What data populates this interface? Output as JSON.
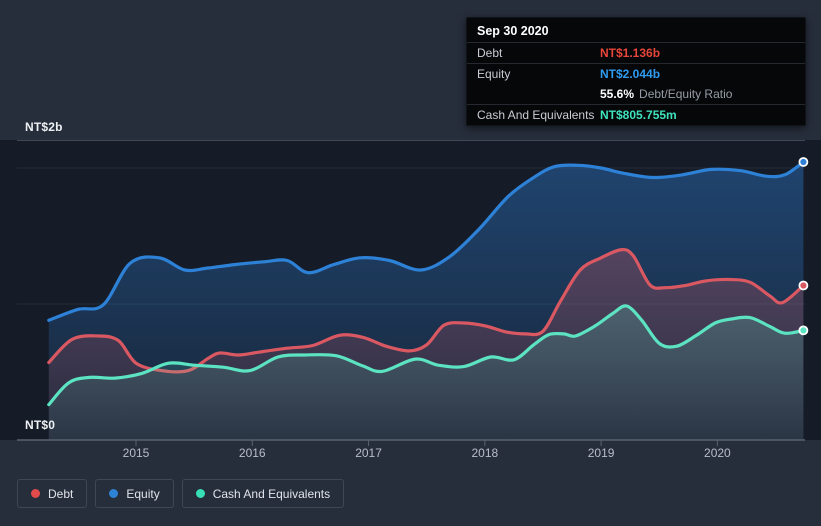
{
  "tooltip": {
    "date": "Sep 30 2020",
    "debt_label": "Debt",
    "debt_value": "NT$1.136b",
    "equity_label": "Equity",
    "equity_value": "NT$2.044b",
    "ratio_value": "55.6%",
    "ratio_label": "Debt/Equity Ratio",
    "cash_label": "Cash And Equivalents",
    "cash_value": "NT$805.755m"
  },
  "y_axis": {
    "top_label": "NT$2b",
    "bottom_label": "NT$0"
  },
  "legend": {
    "items": [
      {
        "label": "Debt",
        "color": "#e14b4b"
      },
      {
        "label": "Equity",
        "color": "#2e82d6"
      },
      {
        "label": "Cash And Equivalents",
        "color": "#38dfb6"
      }
    ]
  },
  "colors": {
    "debt_text": "#e8463a",
    "equity_text": "#2f9bf1",
    "cash_text": "#3fe2bd",
    "ratio_muted": "#969da6"
  },
  "chart_data": {
    "type": "area",
    "x_unit": "year",
    "x_ticks": [
      2015,
      2016,
      2017,
      2018,
      2019,
      2020
    ],
    "x_range": [
      2014.25,
      2020.74
    ],
    "ylim": [
      0,
      2.2
    ],
    "y_gridline_values": [
      1,
      2
    ],
    "value_unit": "NT$ billions",
    "legend_position": "bottom-left",
    "series": [
      {
        "name": "Equity",
        "color": "#2d82d8",
        "fill_top": "rgba(45,127,216,0.42)",
        "fill_bottom": "rgba(45,127,216,0.10)",
        "end_value": 2.044,
        "points": [
          [
            2014.25,
            0.88
          ],
          [
            2014.5,
            0.96
          ],
          [
            2014.72,
            0.995
          ],
          [
            2014.95,
            1.3
          ],
          [
            2015.2,
            1.34
          ],
          [
            2015.42,
            1.25
          ],
          [
            2015.62,
            1.265
          ],
          [
            2015.85,
            1.29
          ],
          [
            2016.1,
            1.31
          ],
          [
            2016.3,
            1.32
          ],
          [
            2016.48,
            1.23
          ],
          [
            2016.7,
            1.29
          ],
          [
            2016.93,
            1.34
          ],
          [
            2017.18,
            1.32
          ],
          [
            2017.45,
            1.25
          ],
          [
            2017.7,
            1.35
          ],
          [
            2017.95,
            1.55
          ],
          [
            2018.2,
            1.79
          ],
          [
            2018.42,
            1.93
          ],
          [
            2018.6,
            2.01
          ],
          [
            2018.8,
            2.02
          ],
          [
            2019.0,
            2.0
          ],
          [
            2019.2,
            1.96
          ],
          [
            2019.45,
            1.93
          ],
          [
            2019.7,
            1.95
          ],
          [
            2019.95,
            1.99
          ],
          [
            2020.2,
            1.98
          ],
          [
            2020.42,
            1.94
          ],
          [
            2020.58,
            1.95
          ],
          [
            2020.74,
            2.044
          ]
        ]
      },
      {
        "name": "Debt",
        "color": "#d95862",
        "fill_top": "rgba(219,88,96,0.40)",
        "fill_bottom": "rgba(219,88,96,0.08)",
        "end_value": 1.136,
        "points": [
          [
            2014.25,
            0.57
          ],
          [
            2014.45,
            0.74
          ],
          [
            2014.68,
            0.765
          ],
          [
            2014.85,
            0.73
          ],
          [
            2015.0,
            0.565
          ],
          [
            2015.22,
            0.51
          ],
          [
            2015.45,
            0.51
          ],
          [
            2015.62,
            0.6
          ],
          [
            2015.72,
            0.64
          ],
          [
            2015.88,
            0.625
          ],
          [
            2016.05,
            0.645
          ],
          [
            2016.3,
            0.675
          ],
          [
            2016.52,
            0.695
          ],
          [
            2016.75,
            0.77
          ],
          [
            2016.95,
            0.755
          ],
          [
            2017.15,
            0.69
          ],
          [
            2017.35,
            0.655
          ],
          [
            2017.5,
            0.7
          ],
          [
            2017.65,
            0.845
          ],
          [
            2017.82,
            0.86
          ],
          [
            2018.0,
            0.84
          ],
          [
            2018.18,
            0.795
          ],
          [
            2018.35,
            0.78
          ],
          [
            2018.5,
            0.8
          ],
          [
            2018.65,
            1.02
          ],
          [
            2018.82,
            1.25
          ],
          [
            2019.0,
            1.34
          ],
          [
            2019.18,
            1.4
          ],
          [
            2019.28,
            1.35
          ],
          [
            2019.42,
            1.14
          ],
          [
            2019.55,
            1.12
          ],
          [
            2019.72,
            1.135
          ],
          [
            2019.9,
            1.17
          ],
          [
            2020.1,
            1.18
          ],
          [
            2020.28,
            1.16
          ],
          [
            2020.45,
            1.06
          ],
          [
            2020.56,
            1.01
          ],
          [
            2020.74,
            1.136
          ]
        ]
      },
      {
        "name": "Cash And Equivalents",
        "color": "#5ce3c2",
        "fill_top": "rgba(92,227,194,0.40)",
        "fill_bottom": "rgba(92,227,194,0.06)",
        "end_value": 0.805755,
        "points": [
          [
            2014.25,
            0.26
          ],
          [
            2014.42,
            0.42
          ],
          [
            2014.6,
            0.46
          ],
          [
            2014.82,
            0.455
          ],
          [
            2015.05,
            0.49
          ],
          [
            2015.28,
            0.565
          ],
          [
            2015.5,
            0.55
          ],
          [
            2015.75,
            0.535
          ],
          [
            2015.98,
            0.51
          ],
          [
            2016.22,
            0.61
          ],
          [
            2016.45,
            0.625
          ],
          [
            2016.72,
            0.62
          ],
          [
            2016.95,
            0.545
          ],
          [
            2017.12,
            0.505
          ],
          [
            2017.4,
            0.595
          ],
          [
            2017.6,
            0.55
          ],
          [
            2017.82,
            0.54
          ],
          [
            2018.05,
            0.61
          ],
          [
            2018.25,
            0.59
          ],
          [
            2018.42,
            0.7
          ],
          [
            2018.55,
            0.775
          ],
          [
            2018.68,
            0.78
          ],
          [
            2018.78,
            0.765
          ],
          [
            2018.95,
            0.84
          ],
          [
            2019.1,
            0.93
          ],
          [
            2019.22,
            0.985
          ],
          [
            2019.35,
            0.88
          ],
          [
            2019.5,
            0.71
          ],
          [
            2019.65,
            0.69
          ],
          [
            2019.82,
            0.77
          ],
          [
            2019.98,
            0.86
          ],
          [
            2020.12,
            0.89
          ],
          [
            2020.28,
            0.9
          ],
          [
            2020.45,
            0.835
          ],
          [
            2020.58,
            0.785
          ],
          [
            2020.74,
            0.806
          ]
        ]
      }
    ]
  }
}
